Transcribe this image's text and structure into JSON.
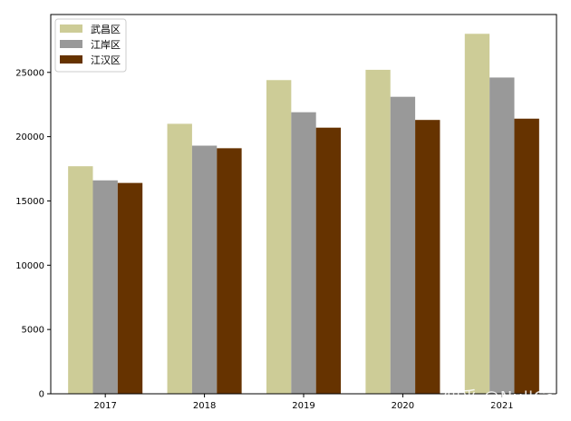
{
  "chart_data": {
    "type": "bar",
    "title": "",
    "xlabel": "",
    "ylabel": "",
    "categories": [
      "2017",
      "2018",
      "2019",
      "2020",
      "2021"
    ],
    "series": [
      {
        "name": "武昌区",
        "color": "#cdcc97",
        "values": [
          17700,
          21000,
          24400,
          25200,
          28000
        ]
      },
      {
        "name": "江岸区",
        "color": "#999999",
        "values": [
          16600,
          19300,
          21900,
          23100,
          24600
        ]
      },
      {
        "name": "江汉区",
        "color": "#663300",
        "values": [
          16400,
          19100,
          20700,
          21300,
          21400
        ]
      }
    ],
    "ylim": [
      0,
      29500
    ],
    "yticks": [
      0,
      5000,
      10000,
      15000,
      20000,
      25000
    ],
    "grid": false,
    "legend_position": "top-left"
  },
  "watermark": "知乎 @NullCat"
}
